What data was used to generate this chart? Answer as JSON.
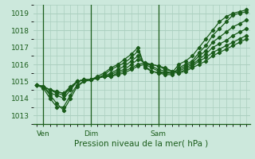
{
  "xlabel": "Pression niveau de la mer( hPa )",
  "bg_color": "#cce8dc",
  "grid_color": "#aacfbf",
  "line_color": "#1a5c1a",
  "label_color": "#1a5c1a",
  "ylim": [
    1012.5,
    1019.5
  ],
  "yticks": [
    1013,
    1014,
    1015,
    1016,
    1017,
    1018,
    1019
  ],
  "vline_positions": [
    1,
    8,
    18
  ],
  "xtick_positions": [
    1,
    8,
    18
  ],
  "xtick_labels": [
    "Ven",
    "Dim",
    "Sam"
  ],
  "n_points": 32,
  "series": [
    [
      1014.8,
      1014.7,
      1014.2,
      1013.7,
      1013.3,
      1014.0,
      1014.7,
      1015.0,
      1015.1,
      1015.3,
      1015.5,
      1015.8,
      1016.0,
      1016.3,
      1016.6,
      1017.0,
      1015.8,
      1015.6,
      1015.5,
      1015.5,
      1015.5,
      1016.0,
      1016.2,
      1016.5,
      1017.0,
      1017.5,
      1018.0,
      1018.5,
      1018.8,
      1019.0,
      1019.1,
      1019.2
    ],
    [
      1014.8,
      1014.6,
      1014.0,
      1013.5,
      1013.5,
      1014.2,
      1014.8,
      1015.0,
      1015.1,
      1015.2,
      1015.4,
      1015.7,
      1015.9,
      1016.1,
      1016.4,
      1016.8,
      1015.9,
      1015.6,
      1015.5,
      1015.4,
      1015.4,
      1015.8,
      1016.0,
      1016.2,
      1016.7,
      1017.1,
      1017.7,
      1018.1,
      1018.5,
      1018.9,
      1019.0,
      1019.1
    ],
    [
      1014.8,
      1014.7,
      1014.3,
      1014.2,
      1014.0,
      1014.5,
      1015.0,
      1015.1,
      1015.1,
      1015.2,
      1015.3,
      1015.5,
      1015.7,
      1015.9,
      1016.2,
      1016.5,
      1016.0,
      1015.8,
      1015.6,
      1015.5,
      1015.5,
      1015.7,
      1015.9,
      1016.1,
      1016.5,
      1016.8,
      1017.3,
      1017.6,
      1017.9,
      1018.2,
      1018.4,
      1018.6
    ],
    [
      1014.8,
      1014.7,
      1014.5,
      1014.3,
      1014.2,
      1014.6,
      1015.0,
      1015.1,
      1015.1,
      1015.2,
      1015.3,
      1015.4,
      1015.6,
      1015.7,
      1016.0,
      1016.3,
      1016.1,
      1015.9,
      1015.7,
      1015.6,
      1015.5,
      1015.6,
      1015.8,
      1016.0,
      1016.3,
      1016.6,
      1017.0,
      1017.2,
      1017.4,
      1017.7,
      1017.9,
      1018.1
    ],
    [
      1014.8,
      1014.7,
      1014.5,
      1014.4,
      1014.3,
      1014.7,
      1015.0,
      1015.1,
      1015.1,
      1015.2,
      1015.3,
      1015.3,
      1015.5,
      1015.6,
      1015.8,
      1016.0,
      1016.1,
      1016.0,
      1015.9,
      1015.7,
      1015.6,
      1015.5,
      1015.7,
      1015.9,
      1016.2,
      1016.4,
      1016.7,
      1016.9,
      1017.1,
      1017.3,
      1017.5,
      1017.7
    ],
    [
      1014.8,
      1014.7,
      1014.5,
      1014.4,
      1014.3,
      1014.6,
      1015.0,
      1015.1,
      1015.1,
      1015.2,
      1015.3,
      1015.3,
      1015.4,
      1015.5,
      1015.7,
      1015.9,
      1016.0,
      1016.0,
      1015.9,
      1015.8,
      1015.6,
      1015.5,
      1015.6,
      1015.8,
      1016.0,
      1016.2,
      1016.5,
      1016.7,
      1016.9,
      1017.1,
      1017.3,
      1017.5
    ]
  ],
  "marker": "D",
  "markersize": 2.2,
  "linewidth": 0.9
}
